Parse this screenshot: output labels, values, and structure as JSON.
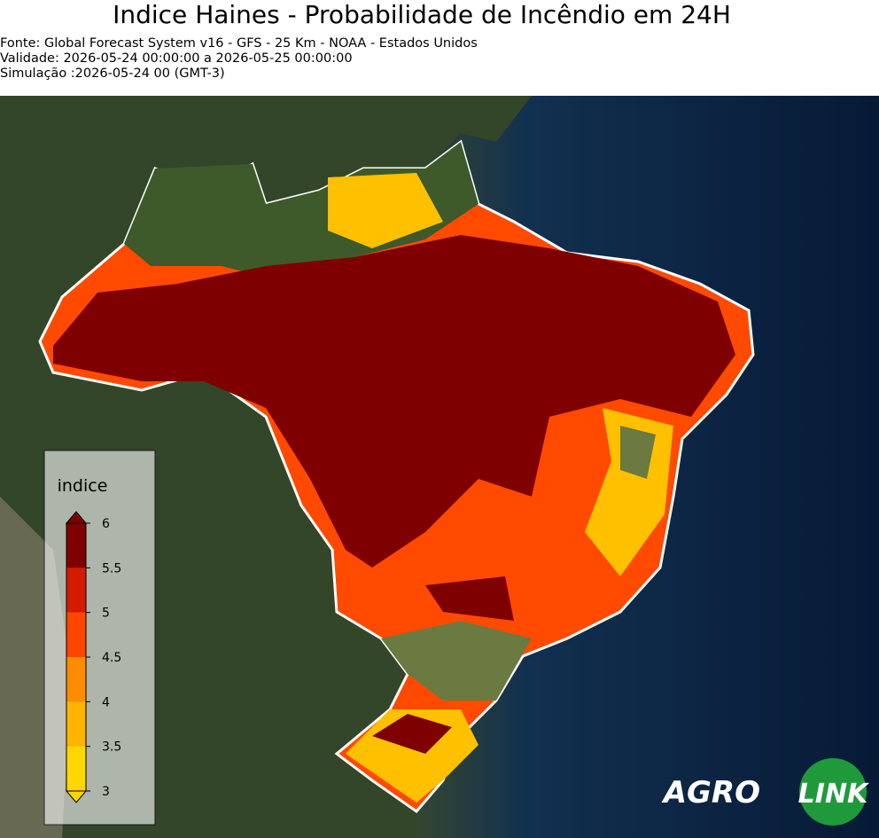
{
  "header": {
    "title": "Indice Haines - Probabilidade de Incêndio em 24H",
    "lines": [
      "Fonte: Global Forecast System v16 - GFS - 25 Km - NOAA - Estados Unidos",
      "Validade: 2026-05-24 00:00:00 a 2026-05-25 00:00:00",
      "Simulação :2026-05-24 00 (GMT-3)"
    ]
  },
  "legend": {
    "label": "indice",
    "range": [
      3,
      6
    ],
    "ticks": [
      3,
      3.5,
      4,
      4.5,
      5,
      5.5,
      6
    ],
    "colors": [
      "#ffd700",
      "#ffb400",
      "#ff8c00",
      "#ff4500",
      "#d61a00",
      "#7f0000"
    ]
  },
  "logo": {
    "left": "AGRO",
    "right": "LINK"
  }
}
